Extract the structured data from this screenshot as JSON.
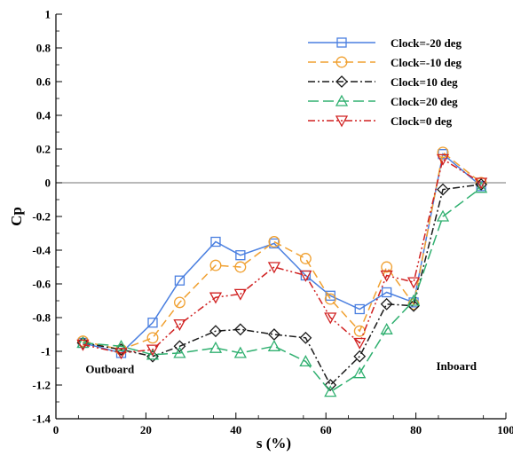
{
  "chart_data": {
    "type": "line",
    "xlabel": "s (%)",
    "ylabel": "Cp",
    "xlim": [
      0,
      100
    ],
    "ylim": [
      -1.4,
      1
    ],
    "xticks": [
      0,
      20,
      40,
      60,
      80,
      100
    ],
    "yticks": [
      1,
      0.8,
      0.6,
      0.4,
      0.2,
      0,
      -0.2,
      -0.4,
      -0.6,
      -0.8,
      -1,
      -1.2,
      -1.4
    ],
    "ytick_labels": [
      "1",
      "0.8",
      "0.6",
      "0.4",
      "0.2",
      "0",
      "-0.2",
      "-0.4",
      "-0.6",
      "-0.8",
      "-1",
      "-1.2",
      "-1.4"
    ],
    "reference_line_y": 0,
    "legend_position": "top-right",
    "grid": false,
    "annotations": [
      {
        "text": "Outboard",
        "x": 12,
        "y": -1.13
      },
      {
        "text": "Inboard",
        "x": 89,
        "y": -1.11
      }
    ],
    "series": [
      {
        "name": "Clock=-20 deg",
        "color": "#4a7fe0",
        "marker": "square",
        "dash": "solid",
        "x": [
          6,
          14.5,
          21.5,
          27.5,
          35.5,
          41,
          48.5,
          55.5,
          61,
          67.5,
          73.5,
          79.5,
          86,
          94.5
        ],
        "y": [
          -0.95,
          -1.01,
          -0.83,
          -0.58,
          -0.35,
          -0.43,
          -0.36,
          -0.55,
          -0.67,
          -0.75,
          -0.65,
          -0.71,
          0.17,
          -0.02
        ]
      },
      {
        "name": "Clock=-10 deg",
        "color": "#f0a030",
        "marker": "circle",
        "dash": "dash",
        "x": [
          6,
          14.5,
          21.5,
          27.5,
          35.5,
          41,
          48.5,
          55.5,
          61,
          67.5,
          73.5,
          79.5,
          86,
          94.5
        ],
        "y": [
          -0.94,
          -0.99,
          -0.92,
          -0.71,
          -0.49,
          -0.5,
          -0.35,
          -0.45,
          -0.69,
          -0.88,
          -0.5,
          -0.72,
          0.18,
          0.0
        ]
      },
      {
        "name": "Clock=10 deg",
        "color": "#1a1a1a",
        "marker": "diamond",
        "dash": "dashdot",
        "x": [
          6,
          14.5,
          21.5,
          27.5,
          35.5,
          41,
          48.5,
          55.5,
          61,
          67.5,
          73.5,
          79.5,
          86,
          94.5
        ],
        "y": [
          -0.95,
          -0.99,
          -1.03,
          -0.97,
          -0.88,
          -0.87,
          -0.9,
          -0.92,
          -1.2,
          -1.03,
          -0.72,
          -0.73,
          -0.04,
          -0.01
        ]
      },
      {
        "name": "Clock=20 deg",
        "color": "#30b070",
        "marker": "triangle-up",
        "dash": "longdash",
        "x": [
          6,
          14.5,
          21.5,
          27.5,
          35.5,
          41,
          48.5,
          55.5,
          61,
          67.5,
          73.5,
          79.5,
          86,
          94.5
        ],
        "y": [
          -0.95,
          -0.97,
          -1.02,
          -1.01,
          -0.98,
          -1.01,
          -0.97,
          -1.06,
          -1.24,
          -1.13,
          -0.87,
          -0.7,
          -0.2,
          -0.03
        ]
      },
      {
        "name": "Clock=0 deg",
        "color": "#d02020",
        "marker": "triangle-down",
        "dash": "dashdotdot",
        "x": [
          6,
          14.5,
          21.5,
          27.5,
          35.5,
          41,
          48.5,
          55.5,
          61,
          67.5,
          73.5,
          79.5,
          86,
          94.5
        ],
        "y": [
          -0.96,
          -1.01,
          -0.99,
          -0.84,
          -0.68,
          -0.66,
          -0.5,
          -0.55,
          -0.8,
          -0.95,
          -0.55,
          -0.59,
          0.14,
          0.0
        ]
      }
    ]
  }
}
